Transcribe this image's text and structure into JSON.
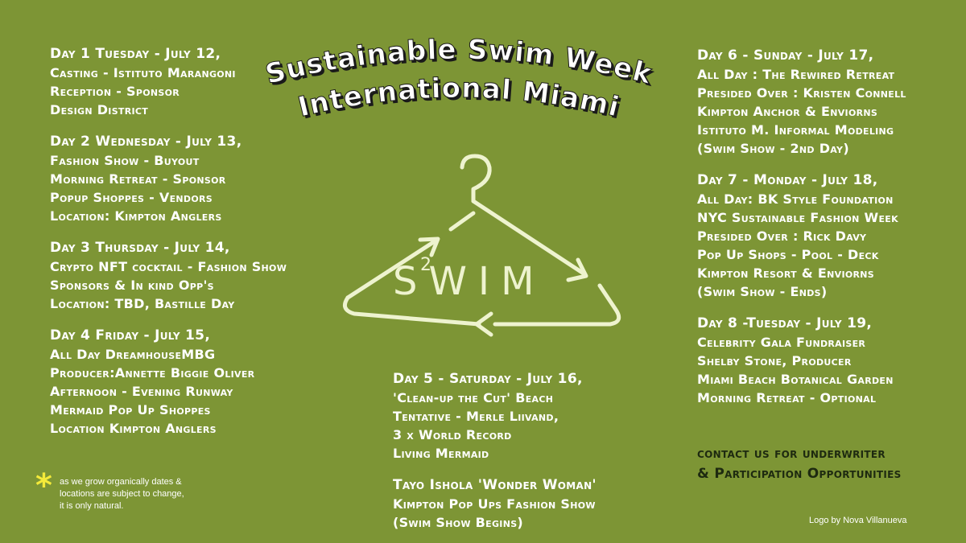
{
  "colors": {
    "background": "#7d9535",
    "text": "#ffffff",
    "logo": "#eef3cf",
    "contact_text": "#1e2a10",
    "asterisk": "#f4ea3a",
    "title_shadow": "#1a1a1a"
  },
  "title": {
    "line1": "Sustainable Swim Week",
    "line2": "International Miami"
  },
  "logo": {
    "text": "SWIM",
    "superscript": "2",
    "icon": "hanger-recycle-icon"
  },
  "left_days": [
    {
      "heading": "Day 1 Tuesday - July  12,",
      "lines": [
        "Casting - Istituto Marangoni",
        "Reception - Sponsor",
        "Design District"
      ]
    },
    {
      "heading": "Day 2 Wednesday - July 13,",
      "lines": [
        "Fashion Show - Buyout",
        "Morning Retreat - Sponsor",
        "Popup Shoppes - Vendors",
        "Location: Kimpton Anglers"
      ]
    },
    {
      "heading": "Day 3 Thursday - July 14,",
      "lines": [
        "Crypto NFT cocktail - Fashion Show",
        "Sponsors & In kind Opp's",
        "Location: TBD, Bastille Day"
      ]
    },
    {
      "heading": "Day 4  Friday - July 15,",
      "lines": [
        "All Day   DreamhouseMBG",
        "Producer:Annette Biggie Oliver",
        "Afternoon - Evening Runway",
        "Mermaid Pop Up Shoppes",
        "Location Kimpton  Anglers"
      ]
    }
  ],
  "center_days": [
    {
      "heading": "Day 5 - Saturday - July 16,",
      "lines": [
        "'Clean-up the Cut' Beach",
        "Tentative - Merle Liivand,",
        "3 x World Record",
        "Living Mermaid"
      ]
    },
    {
      "heading": "Tayo Ishola 'Wonder Woman'",
      "lines": [
        "Kimpton  Pop Ups Fashion Show",
        "(Swim Show Begins)"
      ]
    }
  ],
  "right_days": [
    {
      "heading": "Day 6 - Sunday - July 17,",
      "lines": [
        "All Day : The Rewired Retreat",
        "Presided Over : Kristen Connell",
        "Kimpton  Anchor & Enviorns",
        "Istituto M. Informal Modeling",
        "(Swim Show - 2nd Day)"
      ]
    },
    {
      "heading": "Day 7 - Monday - July 18,",
      "lines": [
        "All Day: BK Style Foundation",
        "NYC Sustainable Fashion Week",
        "Presided Over : Rick Davy",
        "Pop Up Shops - Pool - Deck",
        "Kimpton  Resort & Enviorns",
        "(Swim Show - Ends)"
      ]
    },
    {
      "heading": "Day 8 -Tuesday - July 19,",
      "lines": [
        "Celebrity Gala Fundraiser",
        "Shelby Stone, Producer",
        "Miami Beach Botanical Garden",
        "Morning Retreat - Optional"
      ]
    }
  ],
  "contact": {
    "line1": "contact us for underwriter",
    "line2": "& Participation Opportunities"
  },
  "note": {
    "symbol": "*",
    "line1": "as we grow organically dates &",
    "line2": "locations are subject to change,",
    "line3": "it is only natural."
  },
  "credit": "Logo by Nova Villanueva"
}
